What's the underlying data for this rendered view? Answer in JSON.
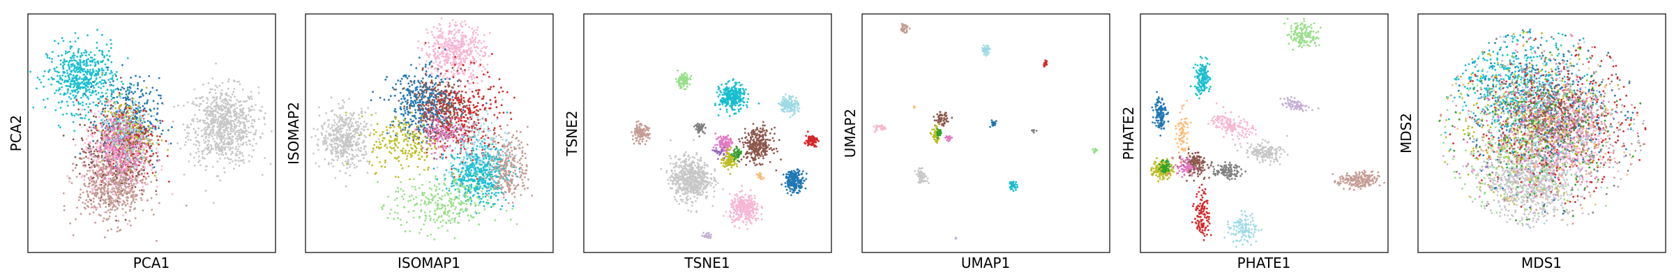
{
  "figure": {
    "panels": [
      {
        "xlabel": "PCA1",
        "ylabel": "PCA2"
      },
      {
        "xlabel": "ISOMAP1",
        "ylabel": "ISOMAP2"
      },
      {
        "xlabel": "TSNE1",
        "ylabel": "TSNE2"
      },
      {
        "xlabel": "UMAP1",
        "ylabel": "UMAP2"
      },
      {
        "xlabel": "PHATE1",
        "ylabel": "PHATE2"
      },
      {
        "xlabel": "MDS1",
        "ylabel": "MDS2"
      }
    ]
  },
  "colors": {
    "c1": "#1f77b4",
    "c2": "#17becf",
    "c3": "#c49c94",
    "c4": "#e377c2",
    "c5": "#f7b6d2",
    "c6": "#8c564b",
    "c7": "#d62728",
    "c8": "#bcbd22",
    "c9": "#98df8a",
    "c10": "#9edae5",
    "c11": "#c5b0d5",
    "c12": "#ffbb78",
    "c13": "#7f7f7f",
    "c14": "#c7c7c7",
    "c15": "#2ca02c",
    "c16": "#9467bd"
  },
  "chart_data": [
    {
      "type": "scatter",
      "xlabel": "PCA1",
      "ylabel": "PCA2",
      "xlim": [
        0,
        1
      ],
      "ylim": [
        0,
        1
      ],
      "clusters": [
        {
          "color": "#c7c7c7",
          "cx": 0.79,
          "cy": 0.53,
          "sx": 0.07,
          "sy": 0.08,
          "n": 800
        },
        {
          "color": "#17becf",
          "cx": 0.22,
          "cy": 0.73,
          "sx": 0.07,
          "sy": 0.07,
          "n": 550
        },
        {
          "color": "#1f77b4",
          "cx": 0.41,
          "cy": 0.55,
          "sx": 0.06,
          "sy": 0.09,
          "n": 350
        },
        {
          "color": "#d62728",
          "cx": 0.4,
          "cy": 0.47,
          "sx": 0.06,
          "sy": 0.08,
          "n": 300
        },
        {
          "color": "#bcbd22",
          "cx": 0.4,
          "cy": 0.5,
          "sx": 0.05,
          "sy": 0.07,
          "n": 200
        },
        {
          "color": "#8c564b",
          "cx": 0.35,
          "cy": 0.41,
          "sx": 0.07,
          "sy": 0.09,
          "n": 400
        },
        {
          "color": "#f7b6d2",
          "cx": 0.36,
          "cy": 0.4,
          "sx": 0.07,
          "sy": 0.09,
          "n": 450
        },
        {
          "color": "#c49c94",
          "cx": 0.34,
          "cy": 0.26,
          "sx": 0.07,
          "sy": 0.07,
          "n": 450
        },
        {
          "color": "#9edae5",
          "cx": 0.4,
          "cy": 0.5,
          "sx": 0.05,
          "sy": 0.06,
          "n": 150
        },
        {
          "color": "#e377c2",
          "cx": 0.38,
          "cy": 0.45,
          "sx": 0.05,
          "sy": 0.06,
          "n": 150
        }
      ]
    },
    {
      "type": "scatter",
      "xlabel": "ISOMAP1",
      "ylabel": "ISOMAP2",
      "xlim": [
        0,
        1
      ],
      "ylim": [
        0,
        1
      ],
      "clusters": [
        {
          "color": "#f7b6d2",
          "cx": 0.6,
          "cy": 0.84,
          "sx": 0.06,
          "sy": 0.06,
          "n": 500
        },
        {
          "color": "#c7c7c7",
          "cx": 0.16,
          "cy": 0.48,
          "sx": 0.05,
          "sy": 0.06,
          "n": 450
        },
        {
          "color": "#1f77b4",
          "cx": 0.48,
          "cy": 0.62,
          "sx": 0.07,
          "sy": 0.07,
          "n": 400
        },
        {
          "color": "#8c564b",
          "cx": 0.54,
          "cy": 0.6,
          "sx": 0.06,
          "sy": 0.07,
          "n": 350
        },
        {
          "color": "#d62728",
          "cx": 0.65,
          "cy": 0.56,
          "sx": 0.07,
          "sy": 0.1,
          "n": 300
        },
        {
          "color": "#17becf",
          "cx": 0.7,
          "cy": 0.33,
          "sx": 0.06,
          "sy": 0.06,
          "n": 500
        },
        {
          "color": "#c49c94",
          "cx": 0.82,
          "cy": 0.36,
          "sx": 0.04,
          "sy": 0.07,
          "n": 250
        },
        {
          "color": "#98df8a",
          "cx": 0.55,
          "cy": 0.2,
          "sx": 0.1,
          "sy": 0.06,
          "n": 300
        },
        {
          "color": "#bcbd22",
          "cx": 0.4,
          "cy": 0.46,
          "sx": 0.07,
          "sy": 0.06,
          "n": 200
        },
        {
          "color": "#e377c2",
          "cx": 0.56,
          "cy": 0.5,
          "sx": 0.05,
          "sy": 0.04,
          "n": 120
        },
        {
          "color": "#9edae5",
          "cx": 0.7,
          "cy": 0.45,
          "sx": 0.06,
          "sy": 0.07,
          "n": 150
        }
      ]
    },
    {
      "type": "scatter",
      "xlabel": "TSNE1",
      "ylabel": "TSNE2",
      "xlim": [
        0,
        1
      ],
      "ylim": [
        0,
        1
      ],
      "clusters": [
        {
          "color": "#c7c7c7",
          "cx": 0.43,
          "cy": 0.31,
          "sx": 0.04,
          "sy": 0.045,
          "n": 600
        },
        {
          "color": "#f7b6d2",
          "cx": 0.65,
          "cy": 0.18,
          "sx": 0.03,
          "sy": 0.03,
          "n": 300
        },
        {
          "color": "#8c564b",
          "cx": 0.7,
          "cy": 0.45,
          "sx": 0.03,
          "sy": 0.035,
          "n": 300
        },
        {
          "color": "#17becf",
          "cx": 0.6,
          "cy": 0.65,
          "sx": 0.025,
          "sy": 0.028,
          "n": 300
        },
        {
          "color": "#1f77b4",
          "cx": 0.85,
          "cy": 0.3,
          "sx": 0.02,
          "sy": 0.022,
          "n": 200
        },
        {
          "color": "#9edae5",
          "cx": 0.83,
          "cy": 0.62,
          "sx": 0.018,
          "sy": 0.018,
          "n": 150
        },
        {
          "color": "#d62728",
          "cx": 0.92,
          "cy": 0.47,
          "sx": 0.012,
          "sy": 0.012,
          "n": 90
        },
        {
          "color": "#98df8a",
          "cx": 0.4,
          "cy": 0.72,
          "sx": 0.014,
          "sy": 0.015,
          "n": 100
        },
        {
          "color": "#c49c94",
          "cx": 0.23,
          "cy": 0.5,
          "sx": 0.017,
          "sy": 0.018,
          "n": 120
        },
        {
          "color": "#7f7f7f",
          "cx": 0.47,
          "cy": 0.52,
          "sx": 0.01,
          "sy": 0.01,
          "n": 50
        },
        {
          "color": "#e377c2",
          "cx": 0.57,
          "cy": 0.46,
          "sx": 0.018,
          "sy": 0.018,
          "n": 100
        },
        {
          "color": "#bcbd22",
          "cx": 0.59,
          "cy": 0.39,
          "sx": 0.016,
          "sy": 0.018,
          "n": 100
        },
        {
          "color": "#c5b0d5",
          "cx": 0.5,
          "cy": 0.07,
          "sx": 0.008,
          "sy": 0.008,
          "n": 25
        },
        {
          "color": "#ffbb78",
          "cx": 0.71,
          "cy": 0.32,
          "sx": 0.008,
          "sy": 0.008,
          "n": 20
        },
        {
          "color": "#2ca02c",
          "cx": 0.62,
          "cy": 0.41,
          "sx": 0.01,
          "sy": 0.012,
          "n": 40
        },
        {
          "color": "#9467bd",
          "cx": 0.55,
          "cy": 0.42,
          "sx": 0.01,
          "sy": 0.01,
          "n": 25
        }
      ]
    },
    {
      "type": "scatter",
      "xlabel": "UMAP1",
      "ylabel": "UMAP2",
      "xlim": [
        0,
        1
      ],
      "ylim": [
        0,
        1
      ],
      "clusters": [
        {
          "color": "#c49c94",
          "cx": 0.17,
          "cy": 0.94,
          "sx": 0.008,
          "sy": 0.01,
          "n": 40
        },
        {
          "color": "#9edae5",
          "cx": 0.5,
          "cy": 0.85,
          "sx": 0.008,
          "sy": 0.01,
          "n": 40
        },
        {
          "color": "#d62728",
          "cx": 0.74,
          "cy": 0.79,
          "sx": 0.004,
          "sy": 0.006,
          "n": 15
        },
        {
          "color": "#8c564b",
          "cx": 0.32,
          "cy": 0.56,
          "sx": 0.012,
          "sy": 0.014,
          "n": 60
        },
        {
          "color": "#bcbd22",
          "cx": 0.3,
          "cy": 0.49,
          "sx": 0.008,
          "sy": 0.015,
          "n": 60
        },
        {
          "color": "#2ca02c",
          "cx": 0.31,
          "cy": 0.5,
          "sx": 0.006,
          "sy": 0.01,
          "n": 25
        },
        {
          "color": "#e377c2",
          "cx": 0.35,
          "cy": 0.48,
          "sx": 0.006,
          "sy": 0.006,
          "n": 20
        },
        {
          "color": "#1f77b4",
          "cx": 0.53,
          "cy": 0.54,
          "sx": 0.006,
          "sy": 0.008,
          "n": 25
        },
        {
          "color": "#7f7f7f",
          "cx": 0.69,
          "cy": 0.51,
          "sx": 0.004,
          "sy": 0.004,
          "n": 8
        },
        {
          "color": "#f7b6d2",
          "cx": 0.07,
          "cy": 0.52,
          "sx": 0.012,
          "sy": 0.008,
          "n": 30
        },
        {
          "color": "#c7c7c7",
          "cx": 0.24,
          "cy": 0.32,
          "sx": 0.012,
          "sy": 0.014,
          "n": 60
        },
        {
          "color": "#17becf",
          "cx": 0.61,
          "cy": 0.28,
          "sx": 0.008,
          "sy": 0.01,
          "n": 40
        },
        {
          "color": "#98df8a",
          "cx": 0.94,
          "cy": 0.43,
          "sx": 0.004,
          "sy": 0.006,
          "n": 12
        },
        {
          "color": "#c5b0d5",
          "cx": 0.38,
          "cy": 0.06,
          "sx": 0.002,
          "sy": 0.003,
          "n": 4
        },
        {
          "color": "#ffbb78",
          "cx": 0.21,
          "cy": 0.61,
          "sx": 0.002,
          "sy": 0.003,
          "n": 4
        }
      ]
    },
    {
      "type": "scatter",
      "xlabel": "PHATE1",
      "ylabel": "PHATE2",
      "xlim": [
        0,
        1
      ],
      "ylim": [
        0,
        1
      ],
      "clusters": [
        {
          "color": "#98df8a",
          "cx": 0.66,
          "cy": 0.91,
          "sx": 0.03,
          "sy": 0.025,
          "n": 150,
          "rot": -0.5
        },
        {
          "color": "#17becf",
          "cx": 0.25,
          "cy": 0.73,
          "sx": 0.015,
          "sy": 0.035,
          "n": 150
        },
        {
          "color": "#1f77b4",
          "cx": 0.08,
          "cy": 0.59,
          "sx": 0.012,
          "sy": 0.035,
          "n": 120
        },
        {
          "color": "#c5b0d5",
          "cx": 0.62,
          "cy": 0.62,
          "sx": 0.03,
          "sy": 0.012,
          "n": 80,
          "rot": -0.3
        },
        {
          "color": "#f7b6d2",
          "cx": 0.37,
          "cy": 0.53,
          "sx": 0.04,
          "sy": 0.02,
          "n": 150,
          "rot": -0.4
        },
        {
          "color": "#ffbb78",
          "cx": 0.17,
          "cy": 0.5,
          "sx": 0.012,
          "sy": 0.05,
          "n": 80
        },
        {
          "color": "#c7c7c7",
          "cx": 0.5,
          "cy": 0.42,
          "sx": 0.04,
          "sy": 0.02,
          "n": 150,
          "rot": -0.2
        },
        {
          "color": "#8c564b",
          "cx": 0.22,
          "cy": 0.37,
          "sx": 0.025,
          "sy": 0.025,
          "n": 150
        },
        {
          "color": "#7f7f7f",
          "cx": 0.35,
          "cy": 0.34,
          "sx": 0.03,
          "sy": 0.015,
          "n": 100
        },
        {
          "color": "#bcbd22",
          "cx": 0.09,
          "cy": 0.35,
          "sx": 0.02,
          "sy": 0.02,
          "n": 150
        },
        {
          "color": "#2ca02c",
          "cx": 0.1,
          "cy": 0.36,
          "sx": 0.01,
          "sy": 0.015,
          "n": 40
        },
        {
          "color": "#d62728",
          "cx": 0.25,
          "cy": 0.16,
          "sx": 0.015,
          "sy": 0.05,
          "n": 120
        },
        {
          "color": "#9edae5",
          "cx": 0.42,
          "cy": 0.1,
          "sx": 0.03,
          "sy": 0.03,
          "n": 120,
          "rot": 0.5
        },
        {
          "color": "#c49c94",
          "cx": 0.88,
          "cy": 0.3,
          "sx": 0.04,
          "sy": 0.018,
          "n": 200
        },
        {
          "color": "#e377c2",
          "cx": 0.18,
          "cy": 0.36,
          "sx": 0.02,
          "sy": 0.02,
          "n": 60
        }
      ]
    },
    {
      "type": "scatter",
      "xlabel": "MDS1",
      "ylabel": "MDS2",
      "xlim": [
        0,
        1
      ],
      "ylim": [
        0,
        1
      ],
      "disk": {
        "cx": 0.5,
        "cy": 0.52,
        "r": 0.42
      },
      "clusters": [
        {
          "color": "#c7c7c7",
          "cx": 0.45,
          "cy": 0.3,
          "sx": 0.09,
          "sy": 0.08,
          "n": 800
        },
        {
          "color": "#1f77b4",
          "cx": 0.5,
          "cy": 0.6,
          "sx": 0.14,
          "sy": 0.14,
          "n": 450
        },
        {
          "color": "#17becf",
          "cx": 0.4,
          "cy": 0.7,
          "sx": 0.12,
          "sy": 0.1,
          "n": 450
        },
        {
          "color": "#d62728",
          "cx": 0.55,
          "cy": 0.55,
          "sx": 0.15,
          "sy": 0.14,
          "n": 400
        },
        {
          "color": "#f7b6d2",
          "cx": 0.62,
          "cy": 0.48,
          "sx": 0.08,
          "sy": 0.08,
          "n": 350
        },
        {
          "color": "#8c564b",
          "cx": 0.55,
          "cy": 0.56,
          "sx": 0.08,
          "sy": 0.08,
          "n": 300
        },
        {
          "color": "#bcbd22",
          "cx": 0.45,
          "cy": 0.55,
          "sx": 0.15,
          "sy": 0.15,
          "n": 300
        },
        {
          "color": "#c49c94",
          "cx": 0.6,
          "cy": 0.5,
          "sx": 0.15,
          "sy": 0.15,
          "n": 250
        },
        {
          "color": "#98df8a",
          "cx": 0.4,
          "cy": 0.45,
          "sx": 0.15,
          "sy": 0.15,
          "n": 200
        },
        {
          "color": "#9edae5",
          "cx": 0.5,
          "cy": 0.55,
          "sx": 0.15,
          "sy": 0.15,
          "n": 200
        },
        {
          "color": "#e377c2",
          "cx": 0.5,
          "cy": 0.5,
          "sx": 0.15,
          "sy": 0.15,
          "n": 200
        },
        {
          "color": "#7f7f7f",
          "cx": 0.5,
          "cy": 0.55,
          "sx": 0.15,
          "sy": 0.15,
          "n": 150
        },
        {
          "color": "#2ca02c",
          "cx": 0.5,
          "cy": 0.5,
          "sx": 0.15,
          "sy": 0.15,
          "n": 150
        },
        {
          "color": "#c5b0d5",
          "cx": 0.5,
          "cy": 0.5,
          "sx": 0.15,
          "sy": 0.15,
          "n": 150
        },
        {
          "color": "#ffbb78",
          "cx": 0.5,
          "cy": 0.5,
          "sx": 0.15,
          "sy": 0.15,
          "n": 150
        }
      ]
    }
  ]
}
